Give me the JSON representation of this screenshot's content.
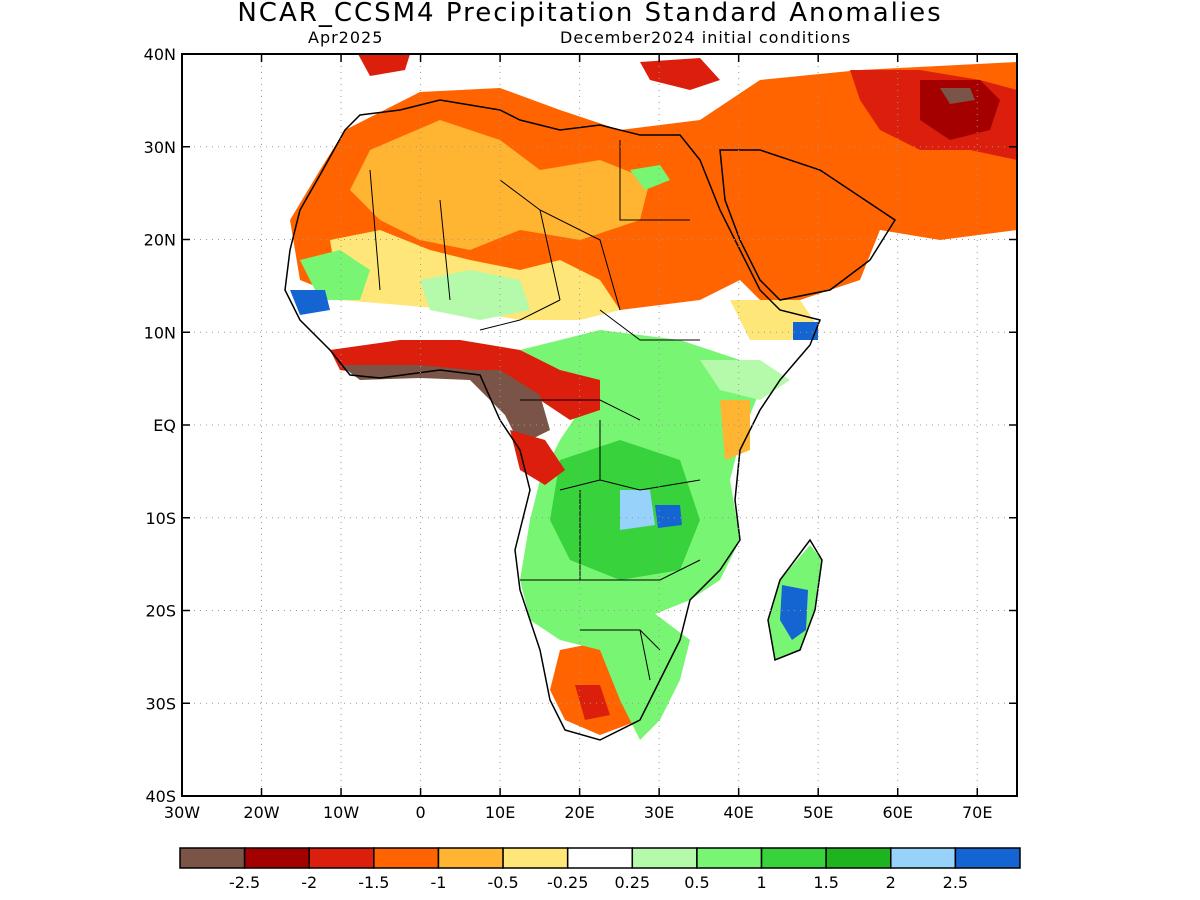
{
  "header": {
    "title": "NCAR_CCSM4 Precipitation Standard Anomalies",
    "target_month": "Apr2025",
    "init": "December2024 initial conditions"
  },
  "map": {
    "lon_range": [
      -30,
      75
    ],
    "lat_range": [
      -40,
      40
    ],
    "lat_ticks": [
      {
        "value": 40,
        "label": "40N"
      },
      {
        "value": 30,
        "label": "30N"
      },
      {
        "value": 20,
        "label": "20N"
      },
      {
        "value": 10,
        "label": "10N"
      },
      {
        "value": 0,
        "label": "EQ"
      },
      {
        "value": -10,
        "label": "10S"
      },
      {
        "value": -20,
        "label": "20S"
      },
      {
        "value": -30,
        "label": "30S"
      },
      {
        "value": -40,
        "label": "40S"
      }
    ],
    "lon_ticks": [
      {
        "value": -30,
        "label": "30W"
      },
      {
        "value": -20,
        "label": "20W"
      },
      {
        "value": -10,
        "label": "10W"
      },
      {
        "value": 0,
        "label": "0"
      },
      {
        "value": 10,
        "label": "10E"
      },
      {
        "value": 20,
        "label": "20E"
      },
      {
        "value": 30,
        "label": "30E"
      },
      {
        "value": 40,
        "label": "40E"
      },
      {
        "value": 50,
        "label": "50E"
      },
      {
        "value": 60,
        "label": "60E"
      },
      {
        "value": 70,
        "label": "70E"
      }
    ],
    "grid_lines": true
  },
  "legend": {
    "colors": [
      "#7a5547",
      "#a50000",
      "#dc1e0c",
      "#ff6400",
      "#ffb432",
      "#ffe678",
      "#ffffff",
      "#b4faaa",
      "#78f573",
      "#37d23c",
      "#1eb41e",
      "#96d2fa",
      "#1464d2"
    ],
    "labels": [
      "-2.5",
      "-2",
      "-1.5",
      "-1",
      "-0.5",
      "-0.25",
      "0.25",
      "0.5",
      "1",
      "1.5",
      "2",
      "2.5"
    ]
  }
}
